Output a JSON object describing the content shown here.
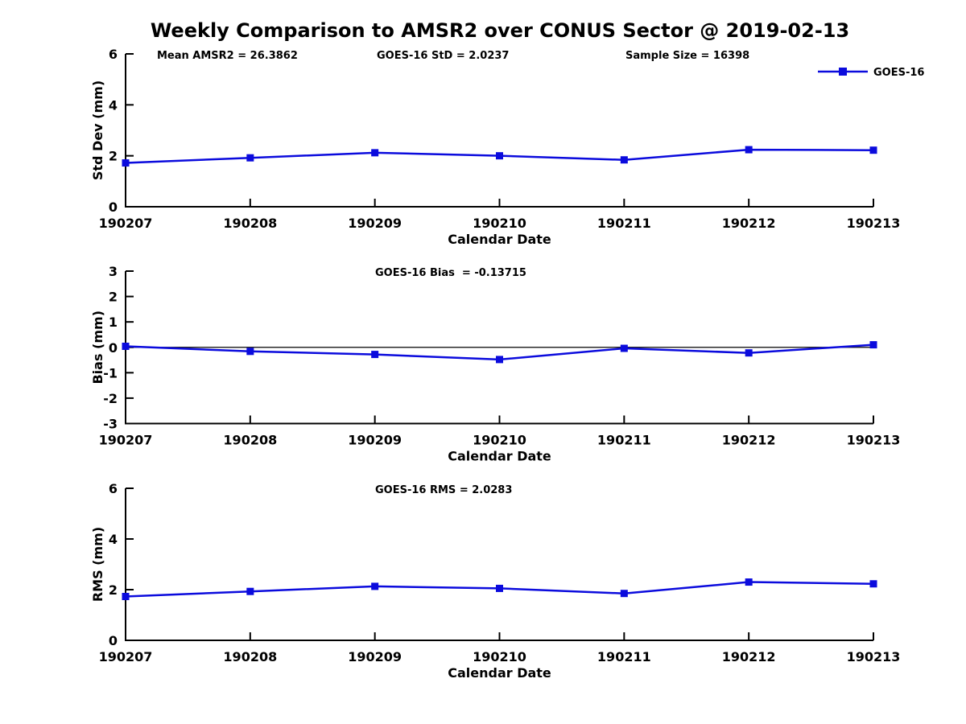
{
  "figure": {
    "title": "Weekly Comparison to AMSR2 over CONUS Sector @ 2019-02-13",
    "background": "#ffffff",
    "line_color": "#0b0bdd",
    "axis_color": "#000000"
  },
  "legend": {
    "label": "GOES-16"
  },
  "chart_data": [
    {
      "type": "line",
      "annotations": [
        "Mean AMSR2 = 26.3862",
        "GOES-16 StD = 2.0237",
        "Sample Size = 16398"
      ],
      "categories": [
        "190207",
        "190208",
        "190209",
        "190210",
        "190211",
        "190212",
        "190213"
      ],
      "series": [
        {
          "name": "GOES-16",
          "values": [
            1.72,
            1.92,
            2.12,
            2.0,
            1.84,
            2.24,
            2.22
          ]
        }
      ],
      "xlabel": "Calendar Date",
      "ylabel": "Std Dev (mm)",
      "ylim": [
        0,
        6
      ],
      "yticks": [
        0,
        2,
        4,
        6
      ],
      "legend": {
        "label": "GOES-16",
        "position": "top-right",
        "marker": "square"
      },
      "zero_line": false,
      "grid": false
    },
    {
      "type": "line",
      "annotations": [
        "GOES-16 Bias  = -0.13715"
      ],
      "categories": [
        "190207",
        "190208",
        "190209",
        "190210",
        "190211",
        "190212",
        "190213"
      ],
      "series": [
        {
          "name": "GOES-16",
          "values": [
            0.04,
            -0.16,
            -0.28,
            -0.48,
            -0.04,
            -0.22,
            0.1
          ]
        }
      ],
      "xlabel": "Calendar Date",
      "ylabel": "Bias (mm)",
      "ylim": [
        -3,
        3
      ],
      "yticks": [
        -3,
        -2,
        -1,
        0,
        1,
        2,
        3
      ],
      "zero_line": true,
      "grid": false
    },
    {
      "type": "line",
      "annotations": [
        "GOES-16 RMS = 2.0283"
      ],
      "categories": [
        "190207",
        "190208",
        "190209",
        "190210",
        "190211",
        "190212",
        "190213"
      ],
      "series": [
        {
          "name": "GOES-16",
          "values": [
            1.73,
            1.93,
            2.13,
            2.05,
            1.85,
            2.3,
            2.23
          ]
        }
      ],
      "xlabel": "Calendar Date",
      "ylabel": "RMS (mm)",
      "ylim": [
        0,
        6
      ],
      "yticks": [
        0,
        2,
        4,
        6
      ],
      "zero_line": false,
      "grid": false
    }
  ]
}
